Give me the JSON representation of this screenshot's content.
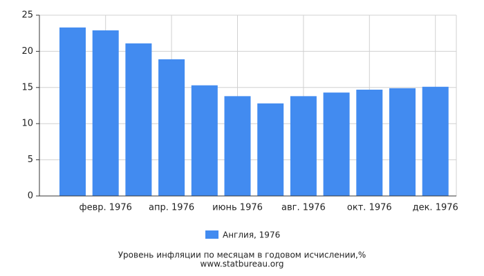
{
  "chart_data": {
    "type": "bar",
    "title": "Уровень инфляции по месяцам в годовом исчислении,%",
    "subtitle": "www.statbureau.org",
    "categories": [
      null,
      "февр. 1976",
      null,
      "апр. 1976",
      null,
      "июнь 1976",
      null,
      "авг. 1976",
      null,
      "окт. 1976",
      null,
      "дек. 1976"
    ],
    "series": [
      {
        "name": "Англия, 1976",
        "color": "#428bf0",
        "values": [
          23.3,
          22.9,
          21.1,
          18.9,
          15.3,
          13.8,
          12.8,
          13.8,
          14.3,
          14.7,
          14.9,
          15.1
        ]
      }
    ],
    "ylim": [
      0,
      25
    ],
    "yticks": [
      0,
      5,
      10,
      15,
      20,
      25
    ],
    "grid": true
  }
}
